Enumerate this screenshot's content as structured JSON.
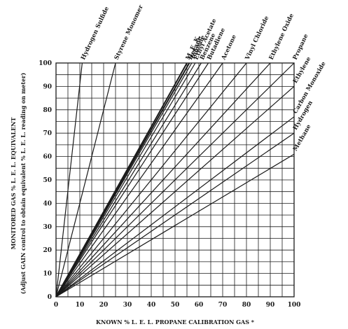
{
  "chart_data": {
    "type": "line",
    "xlabel": "KNOWN % L. E. L. PROPANE CALIBRATION GAS *",
    "ylabel": "MONITORED GAS % L. E. L. EQUIVALENT",
    "ylabel_sub": "(Adjust GAIN control to obtain equivalent % L. E. L. reading on meter)",
    "xlim": [
      0,
      100
    ],
    "ylim": [
      0,
      100
    ],
    "x_ticks": [
      "0",
      "10",
      "20",
      "30",
      "40",
      "50",
      "60",
      "70",
      "80",
      "90",
      "100"
    ],
    "y_ticks": [
      "0",
      "10",
      "20",
      "30",
      "40",
      "50",
      "60",
      "70",
      "80",
      "90",
      "100"
    ],
    "grid": true,
    "series": [
      {
        "name": "Hydrogen Sulfide",
        "x": [
          0,
          11
        ],
        "y": [
          0,
          100
        ]
      },
      {
        "name": "Styrene Monomer",
        "x": [
          0,
          25
        ],
        "y": [
          0,
          100
        ]
      },
      {
        "name": "M. E. K.",
        "x": [
          0,
          55
        ],
        "y": [
          0,
          100
        ]
      },
      {
        "name": "Hexane",
        "x": [
          0,
          56
        ],
        "y": [
          0,
          100
        ]
      },
      {
        "name": "Toluene",
        "x": [
          0,
          57
        ],
        "y": [
          0,
          100
        ]
      },
      {
        "name": "Ethyl Acetate",
        "x": [
          0,
          58.5
        ],
        "y": [
          0,
          100
        ]
      },
      {
        "name": "Benzene",
        "x": [
          0,
          61
        ],
        "y": [
          0,
          100
        ]
      },
      {
        "name": "Butadiene",
        "x": [
          0,
          64
        ],
        "y": [
          0,
          100
        ]
      },
      {
        "name": "Acetone",
        "x": [
          0,
          70
        ],
        "y": [
          0,
          100
        ]
      },
      {
        "name": "Vinyl Chloride",
        "x": [
          0,
          80
        ],
        "y": [
          0,
          100
        ]
      },
      {
        "name": "Ethylene Oxide",
        "x": [
          0,
          90
        ],
        "y": [
          0,
          100
        ]
      },
      {
        "name": "Propane",
        "x": [
          0,
          100
        ],
        "y": [
          0,
          100
        ]
      },
      {
        "name": "Ethylene",
        "x": [
          0,
          100
        ],
        "y": [
          0,
          90
        ]
      },
      {
        "name": "Carbon Monoxide",
        "x": [
          0,
          100
        ],
        "y": [
          0,
          77
        ]
      },
      {
        "name": "Hydrogen",
        "x": [
          0,
          100
        ],
        "y": [
          0,
          70
        ]
      },
      {
        "name": "Methane",
        "x": [
          0,
          100
        ],
        "y": [
          0,
          61
        ]
      }
    ]
  }
}
